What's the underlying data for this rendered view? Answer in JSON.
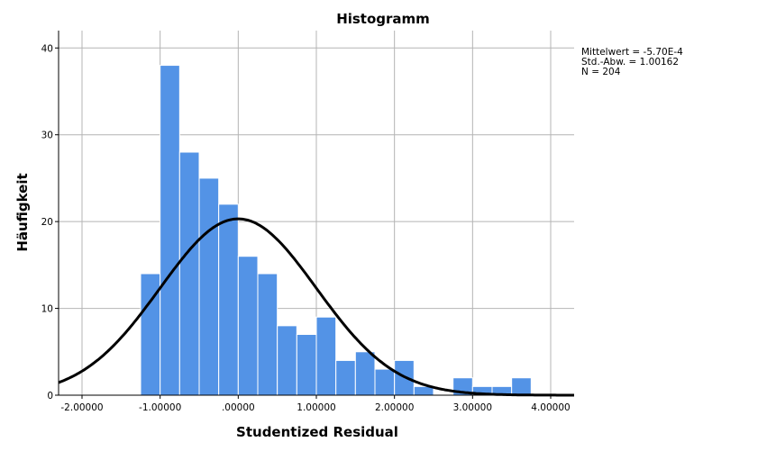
{
  "chart_data": {
    "type": "bar",
    "title": "Histogramm",
    "xlabel": "Studentized Residual",
    "ylabel": "Häufigkeit",
    "xlim": [
      -2.3,
      4.3
    ],
    "ylim": [
      0,
      42
    ],
    "x_ticks": [
      {
        "value": -2.0,
        "label": "-2.00000"
      },
      {
        "value": -1.0,
        "label": "-1.00000"
      },
      {
        "value": 0.0,
        "label": ".00000"
      },
      {
        "value": 1.0,
        "label": "1.00000"
      },
      {
        "value": 2.0,
        "label": "2.00000"
      },
      {
        "value": 3.0,
        "label": "3.00000"
      },
      {
        "value": 4.0,
        "label": "4.00000"
      }
    ],
    "y_ticks": [
      {
        "value": 0,
        "label": "0"
      },
      {
        "value": 10,
        "label": "10"
      },
      {
        "value": 20,
        "label": "20"
      },
      {
        "value": 30,
        "label": "30"
      },
      {
        "value": 40,
        "label": "40"
      }
    ],
    "grid": true,
    "bin_width": 0.25,
    "bins": [
      {
        "start": -1.25,
        "count": 14
      },
      {
        "start": -1.0,
        "count": 38
      },
      {
        "start": -0.75,
        "count": 28
      },
      {
        "start": -0.5,
        "count": 25
      },
      {
        "start": -0.25,
        "count": 22
      },
      {
        "start": 0.0,
        "count": 16
      },
      {
        "start": 0.25,
        "count": 14
      },
      {
        "start": 0.5,
        "count": 8
      },
      {
        "start": 0.75,
        "count": 7
      },
      {
        "start": 1.0,
        "count": 9
      },
      {
        "start": 1.25,
        "count": 4
      },
      {
        "start": 1.5,
        "count": 5
      },
      {
        "start": 1.75,
        "count": 3
      },
      {
        "start": 2.0,
        "count": 4
      },
      {
        "start": 2.25,
        "count": 1
      },
      {
        "start": 2.75,
        "count": 2
      },
      {
        "start": 3.0,
        "count": 1
      },
      {
        "start": 3.25,
        "count": 1
      },
      {
        "start": 3.5,
        "count": 2
      }
    ],
    "bar_color": "#5393E6",
    "bar_edge_color": "#ffffff",
    "normal_curve": {
      "mean": -0.00057,
      "sd": 1.00162,
      "n": 204,
      "color": "#000000"
    },
    "stats": {
      "mean_line": "Mittelwert = -5.70E-4",
      "sd_line": "Std.-Abw. = 1.00162",
      "n_line": "N = 204"
    }
  }
}
